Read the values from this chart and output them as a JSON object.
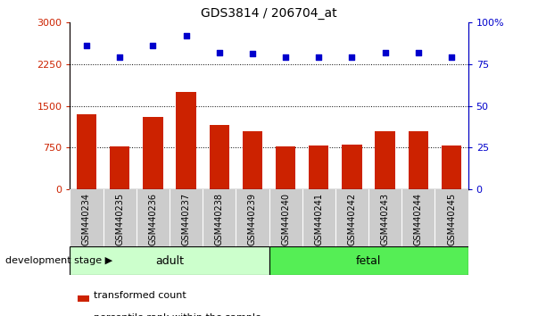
{
  "title": "GDS3814 / 206704_at",
  "samples": [
    "GSM440234",
    "GSM440235",
    "GSM440236",
    "GSM440237",
    "GSM440238",
    "GSM440239",
    "GSM440240",
    "GSM440241",
    "GSM440242",
    "GSM440243",
    "GSM440244",
    "GSM440245"
  ],
  "transformed_count": [
    1350,
    780,
    1300,
    1750,
    1150,
    1050,
    770,
    790,
    800,
    1050,
    1050,
    790
  ],
  "percentile_rank": [
    86,
    79,
    86,
    92,
    82,
    81,
    79,
    79,
    79,
    82,
    82,
    79
  ],
  "bar_color": "#cc2200",
  "dot_color": "#0000cc",
  "adult_samples": 6,
  "fetal_samples": 6,
  "adult_color": "#ccffcc",
  "fetal_color": "#55ee55",
  "adult_label": "adult",
  "fetal_label": "fetal",
  "stage_label": "development stage",
  "left_ylim": [
    0,
    3000
  ],
  "right_ylim": [
    0,
    100
  ],
  "left_yticks": [
    0,
    750,
    1500,
    2250,
    3000
  ],
  "right_yticks": [
    0,
    25,
    50,
    75,
    100
  ],
  "right_yticklabels": [
    "0",
    "25",
    "50",
    "75",
    "100%"
  ],
  "grid_values": [
    750,
    1500,
    2250
  ],
  "left_tick_color": "#cc2200",
  "right_tick_color": "#0000cc",
  "background_color": "#ffffff",
  "xtick_bg_color": "#cccccc"
}
